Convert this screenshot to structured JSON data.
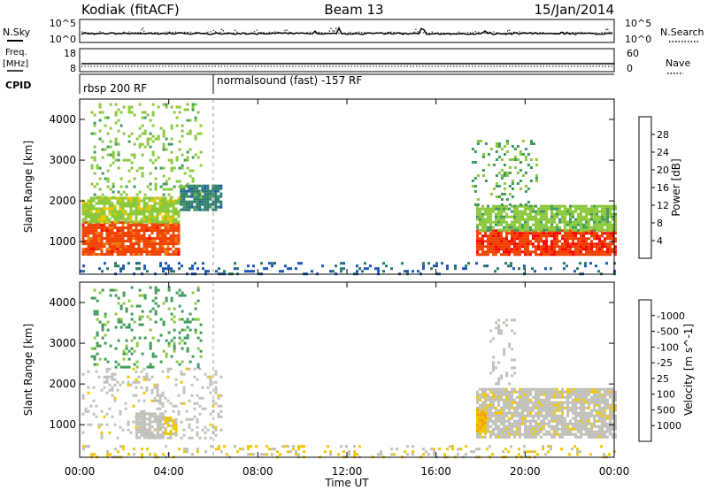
{
  "header": {
    "station": "Kodiak (fitACF)",
    "beam": "Beam 13",
    "date": "15/Jan/2014"
  },
  "top_panel_labels": {
    "nsky": "N.Sky",
    "nsearch": "N.Search",
    "freq": "Freq.",
    "freq_unit": "[MHz]",
    "nave": "Nave",
    "cpid": "CPID",
    "nsky_ticks": [
      "10^5",
      "10^0"
    ],
    "nsearch_ticks": [
      "10^5",
      "10^0"
    ],
    "freq_ticks": [
      "18",
      "8"
    ],
    "nave_ticks": [
      "60",
      "0"
    ]
  },
  "cpid_segments": [
    {
      "label": "rbsp 200 RF",
      "start_hour": 0,
      "end_hour": 6
    },
    {
      "label": "normalsound (fast) -157 RF",
      "start_hour": 6,
      "end_hour": 24
    }
  ],
  "xaxis": {
    "label": "Time UT",
    "ticks": [
      "00:00",
      "04:00",
      "08:00",
      "12:00",
      "16:00",
      "20:00",
      "00:00"
    ]
  },
  "chart_data": [
    {
      "type": "heatmap",
      "title": "",
      "xlabel": "Time UT",
      "ylabel": "Slant Range [km]",
      "xlim": [
        0,
        24
      ],
      "ylim": [
        200,
        4500
      ],
      "yticks": [
        "1000",
        "2000",
        "3000",
        "4000"
      ],
      "colorbar_label": "Power [dB]",
      "colorbar_ticks": [
        "4",
        "8",
        "12",
        "16",
        "20",
        "24",
        "28"
      ],
      "colorbar_range": [
        0,
        32
      ],
      "colormap": [
        "#0000ff",
        "#1e56b4",
        "#2a7a6a",
        "#3e9a5a",
        "#8cc83c",
        "#f0c800",
        "#f5a000",
        "#f07814",
        "#f04000",
        "#ff0000"
      ],
      "regions": [
        {
          "t0": 0.1,
          "t1": 4.5,
          "r0": 700,
          "r1": 1500,
          "value": 27
        },
        {
          "t0": 0.1,
          "t1": 4.5,
          "r0": 1500,
          "r1": 2100,
          "value": 15
        },
        {
          "t0": 4.5,
          "t1": 6.3,
          "r0": 1800,
          "r1": 2400,
          "value": 8
        },
        {
          "t0": 0.5,
          "t1": 5.5,
          "r0": 2100,
          "r1": 4400,
          "value": 14
        },
        {
          "t0": 17.8,
          "t1": 24,
          "r0": 700,
          "r1": 1300,
          "value": 28
        },
        {
          "t0": 17.8,
          "t1": 24,
          "r0": 1300,
          "r1": 1900,
          "value": 14
        },
        {
          "t0": 17.6,
          "t1": 20.5,
          "r0": 1900,
          "r1": 3500,
          "value": 12
        },
        {
          "t0": 0,
          "t1": 24,
          "r0": 220,
          "r1": 500,
          "value": 6
        }
      ]
    },
    {
      "type": "heatmap",
      "title": "",
      "xlabel": "Time UT",
      "ylabel": "Slant Range [km]",
      "xlim": [
        0,
        24
      ],
      "ylim": [
        200,
        4500
      ],
      "yticks": [
        "1000",
        "2000",
        "3000",
        "4000"
      ],
      "colorbar_label": "Velocity [m s^-1]",
      "colorbar_ticks": [
        "1000",
        "500",
        "100",
        "25",
        "-25",
        "-100",
        "-500",
        "-1000"
      ],
      "colorbar_range": [
        -1200,
        1200
      ],
      "colormap": [
        "#ff0000",
        "#f04000",
        "#f07814",
        "#f5a000",
        "#f0c800",
        "#c0c0b8",
        "#c0c0b8",
        "#8cc83c",
        "#3e9a5a",
        "#1e56b4",
        "#0000ff"
      ],
      "regions": [
        {
          "t0": 0.1,
          "t1": 6.3,
          "r0": 700,
          "r1": 2400,
          "value": 0
        },
        {
          "t0": 2.5,
          "t1": 3.8,
          "r0": 700,
          "r1": 1300,
          "value": 150
        },
        {
          "t0": 3.8,
          "t1": 4.3,
          "r0": 800,
          "r1": 1200,
          "value": -150
        },
        {
          "t0": 0.5,
          "t1": 5.5,
          "r0": 2400,
          "r1": 4400,
          "value": 600
        },
        {
          "t0": 17.8,
          "t1": 24,
          "r0": 700,
          "r1": 1900,
          "value": 0
        },
        {
          "t0": 17.8,
          "t1": 18.2,
          "r0": 800,
          "r1": 1400,
          "value": -300
        },
        {
          "t0": 18.4,
          "t1": 19.5,
          "r0": 2000,
          "r1": 3600,
          "value": 150
        },
        {
          "t0": 0,
          "t1": 24,
          "r0": 220,
          "r1": 500,
          "value": -120
        }
      ]
    }
  ]
}
